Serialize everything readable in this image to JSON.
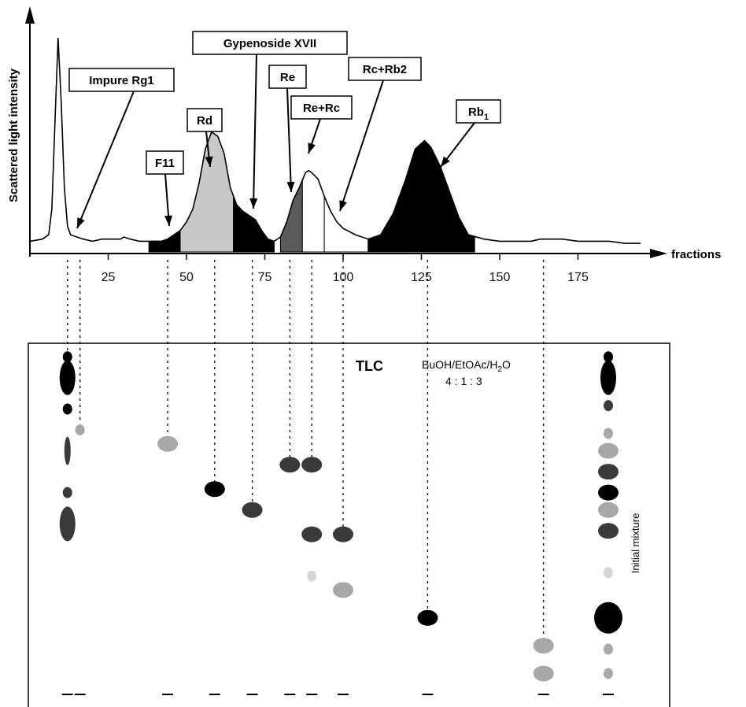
{
  "chart_data": [
    {
      "type": "line",
      "title": "",
      "xlabel": "fractions",
      "ylabel": "Scattered light intensity",
      "xlim": [
        0,
        200
      ],
      "x_ticks": [
        25,
        50,
        75,
        100,
        125,
        150,
        175
      ],
      "ylim": [
        0,
        100
      ],
      "y_ticks_shown": false,
      "grid": false,
      "series": [
        {
          "x": [
            0,
            4,
            6,
            7,
            8,
            9,
            10,
            11,
            12,
            13,
            15,
            17,
            20,
            23,
            27,
            29,
            30,
            32,
            35,
            38,
            40,
            42,
            44,
            46,
            48,
            50,
            52,
            54,
            56,
            58,
            60,
            62,
            64,
            66,
            68,
            70,
            72,
            74,
            76,
            78,
            80,
            82,
            84,
            86,
            88,
            89,
            90,
            92,
            94,
            96,
            98,
            100,
            104,
            108,
            112,
            116,
            120,
            123,
            126,
            128,
            131,
            134,
            137,
            140,
            145,
            150,
            155,
            160,
            163,
            166,
            170,
            175,
            180,
            185,
            190,
            195
          ],
          "y": [
            5,
            6,
            8,
            20,
            60,
            100,
            70,
            30,
            12,
            8,
            7,
            6,
            5,
            6,
            6,
            6,
            7,
            6,
            5,
            5,
            5,
            5,
            6,
            8,
            10,
            14,
            20,
            32,
            48,
            56,
            54,
            46,
            30,
            22,
            19,
            17,
            15,
            10,
            6,
            5,
            7,
            14,
            24,
            30,
            37,
            38,
            37,
            34,
            26,
            19,
            14,
            11,
            8,
            6,
            8,
            18,
            34,
            48,
            52,
            49,
            40,
            28,
            16,
            8,
            6,
            5,
            5,
            5,
            6,
            6,
            6,
            5,
            5,
            5,
            4,
            4
          ]
        }
      ],
      "regions": [
        {
          "label": "F11",
          "x_range": [
            38,
            48
          ],
          "fill": "#000000"
        },
        {
          "label": "Rd",
          "x_range": [
            48,
            65
          ],
          "fill": "#c8c8c8"
        },
        {
          "label": "Gypenoside XVII",
          "x_range": [
            65,
            78
          ],
          "fill": "#000000"
        },
        {
          "label": "Re",
          "x_range": [
            80,
            87
          ],
          "fill": "#5a5a5a"
        },
        {
          "label": "Re+Rc",
          "x_range": [
            87,
            94
          ],
          "fill": "#ffffff"
        },
        {
          "label": "Rc+Rb2",
          "x_range": [
            94,
            108
          ],
          "fill": "#ffffff"
        },
        {
          "label": "Rb1",
          "x_range": [
            108,
            142
          ],
          "fill": "#000000"
        }
      ],
      "annotations": [
        {
          "label": "Impure Rg1",
          "target_x": 16
        },
        {
          "label": "F11",
          "target_x": 44
        },
        {
          "label": "Rd",
          "target_x": 59
        },
        {
          "label": "Gypenoside XVII",
          "target_x": 71
        },
        {
          "label": "Re",
          "target_x": 83
        },
        {
          "label": "Re+Rc",
          "target_x": 90
        },
        {
          "label": "Rc+Rb2",
          "target_x": 100
        },
        {
          "label": "Rb1",
          "target_x": 130,
          "subscript": "1",
          "base": "Rb"
        }
      ]
    },
    {
      "type": "scatter",
      "title": "TLC",
      "solvent": {
        "system_main": "BuOH/EtOAc/H",
        "system_sub": "2",
        "system_tail": "O",
        "ratio": "4   :   1   :   3"
      },
      "side_label": "Initial mixture",
      "lanes": [
        {
          "fraction": 12,
          "spots": [
            {
              "rf": 0.97,
              "tone": "black",
              "size": "small"
            },
            {
              "rf": 0.91,
              "tone": "black",
              "size": "tall"
            },
            {
              "rf": 0.82,
              "tone": "black",
              "size": "small"
            },
            {
              "rf": 0.7,
              "tone": "dark",
              "size": "streak"
            },
            {
              "rf": 0.58,
              "tone": "dark",
              "size": "small"
            },
            {
              "rf": 0.49,
              "tone": "dark",
              "size": "tall"
            }
          ]
        },
        {
          "fraction": 16,
          "spots": [
            {
              "rf": 0.76,
              "tone": "light",
              "size": "small"
            }
          ]
        },
        {
          "fraction": 44,
          "spots": [
            {
              "rf": 0.72,
              "tone": "light",
              "size": "medium"
            }
          ]
        },
        {
          "fraction": 59,
          "spots": [
            {
              "rf": 0.59,
              "tone": "black",
              "size": "medium"
            }
          ]
        },
        {
          "fraction": 71,
          "spots": [
            {
              "rf": 0.53,
              "tone": "dark",
              "size": "medium"
            }
          ]
        },
        {
          "fraction": 83,
          "spots": [
            {
              "rf": 0.66,
              "tone": "dark",
              "size": "medium"
            }
          ]
        },
        {
          "fraction": 90,
          "spots": [
            {
              "rf": 0.66,
              "tone": "dark",
              "size": "medium"
            },
            {
              "rf": 0.46,
              "tone": "dark",
              "size": "medium"
            },
            {
              "rf": 0.34,
              "tone": "faint",
              "size": "small"
            }
          ]
        },
        {
          "fraction": 100,
          "spots": [
            {
              "rf": 0.46,
              "tone": "dark",
              "size": "medium"
            },
            {
              "rf": 0.3,
              "tone": "light",
              "size": "medium"
            }
          ]
        },
        {
          "fraction": 127,
          "spots": [
            {
              "rf": 0.22,
              "tone": "black",
              "size": "medium"
            }
          ]
        },
        {
          "fraction": 164,
          "spots": [
            {
              "rf": 0.14,
              "tone": "light",
              "size": "medium"
            },
            {
              "rf": 0.06,
              "tone": "light",
              "size": "medium"
            }
          ]
        },
        {
          "fraction": "Initial mixture",
          "spots": [
            {
              "rf": 0.97,
              "tone": "black",
              "size": "small"
            },
            {
              "rf": 0.91,
              "tone": "black",
              "size": "tall"
            },
            {
              "rf": 0.83,
              "tone": "dark",
              "size": "small"
            },
            {
              "rf": 0.75,
              "tone": "light",
              "size": "small"
            },
            {
              "rf": 0.7,
              "tone": "light",
              "size": "medium"
            },
            {
              "rf": 0.64,
              "tone": "dark",
              "size": "medium"
            },
            {
              "rf": 0.58,
              "tone": "black",
              "size": "medium"
            },
            {
              "rf": 0.53,
              "tone": "light",
              "size": "medium"
            },
            {
              "rf": 0.47,
              "tone": "dark",
              "size": "medium"
            },
            {
              "rf": 0.35,
              "tone": "faint",
              "size": "small"
            },
            {
              "rf": 0.22,
              "tone": "black",
              "size": "large"
            },
            {
              "rf": 0.13,
              "tone": "light",
              "size": "small"
            },
            {
              "rf": 0.06,
              "tone": "light",
              "size": "small"
            }
          ]
        }
      ]
    }
  ]
}
